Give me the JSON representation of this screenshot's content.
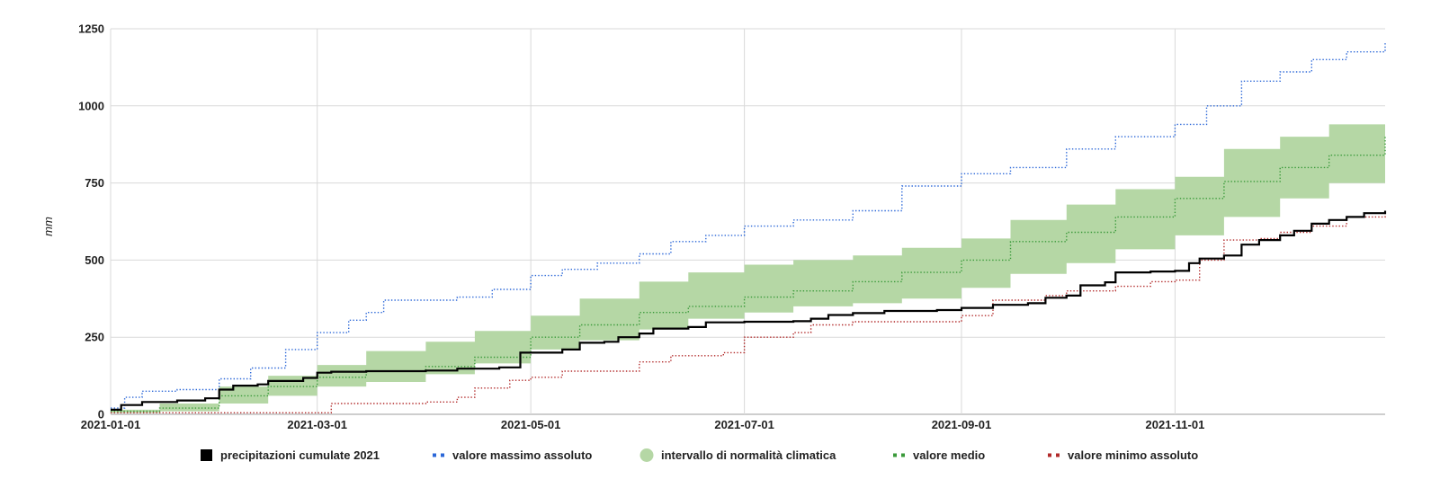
{
  "chart_data": {
    "type": "line",
    "title": "",
    "xlabel": "",
    "ylabel": "mm",
    "x_start": "2021-01-01",
    "x_end": "2021-12-31",
    "xticks": [
      "2021-01-01",
      "2021-03-01",
      "2021-05-01",
      "2021-07-01",
      "2021-09-01",
      "2021-11-01"
    ],
    "ylim": [
      0,
      1250
    ],
    "yticks": [
      0,
      250,
      500,
      750,
      1000,
      1250
    ],
    "grid": true,
    "legend_position": "bottom",
    "series": [
      {
        "name": "precipitazioni cumulate 2021",
        "kind": "line",
        "color": "#000000",
        "points": [
          [
            "2021-01-01",
            15
          ],
          [
            "2021-01-04",
            30
          ],
          [
            "2021-01-10",
            40
          ],
          [
            "2021-01-20",
            45
          ],
          [
            "2021-01-28",
            52
          ],
          [
            "2021-02-01",
            80
          ],
          [
            "2021-02-05",
            93
          ],
          [
            "2021-02-12",
            97
          ],
          [
            "2021-02-15",
            108
          ],
          [
            "2021-02-25",
            118
          ],
          [
            "2021-03-01",
            135
          ],
          [
            "2021-03-05",
            138
          ],
          [
            "2021-03-15",
            140
          ],
          [
            "2021-04-01",
            142
          ],
          [
            "2021-04-10",
            148
          ],
          [
            "2021-04-22",
            152
          ],
          [
            "2021-04-28",
            200
          ],
          [
            "2021-05-10",
            210
          ],
          [
            "2021-05-15",
            232
          ],
          [
            "2021-05-22",
            235
          ],
          [
            "2021-05-26",
            250
          ],
          [
            "2021-06-01",
            262
          ],
          [
            "2021-06-05",
            278
          ],
          [
            "2021-06-15",
            283
          ],
          [
            "2021-06-20",
            298
          ],
          [
            "2021-07-01",
            300
          ],
          [
            "2021-07-15",
            302
          ],
          [
            "2021-07-20",
            310
          ],
          [
            "2021-07-25",
            322
          ],
          [
            "2021-08-01",
            328
          ],
          [
            "2021-08-10",
            335
          ],
          [
            "2021-08-25",
            338
          ],
          [
            "2021-09-01",
            345
          ],
          [
            "2021-09-10",
            355
          ],
          [
            "2021-09-20",
            360
          ],
          [
            "2021-09-25",
            378
          ],
          [
            "2021-10-01",
            385
          ],
          [
            "2021-10-05",
            418
          ],
          [
            "2021-10-12",
            428
          ],
          [
            "2021-10-15",
            460
          ],
          [
            "2021-10-25",
            463
          ],
          [
            "2021-11-01",
            465
          ],
          [
            "2021-11-05",
            490
          ],
          [
            "2021-11-08",
            505
          ],
          [
            "2021-11-15",
            515
          ],
          [
            "2021-11-20",
            550
          ],
          [
            "2021-11-25",
            565
          ],
          [
            "2021-12-01",
            580
          ],
          [
            "2021-12-05",
            595
          ],
          [
            "2021-12-10",
            618
          ],
          [
            "2021-12-15",
            630
          ],
          [
            "2021-12-20",
            640
          ],
          [
            "2021-12-25",
            652
          ],
          [
            "2021-12-31",
            660
          ]
        ]
      },
      {
        "name": "valore massimo assoluto",
        "kind": "dotted",
        "color": "#2b67d8",
        "points": [
          [
            "2021-01-01",
            20
          ],
          [
            "2021-01-05",
            55
          ],
          [
            "2021-01-10",
            75
          ],
          [
            "2021-01-20",
            80
          ],
          [
            "2021-02-01",
            115
          ],
          [
            "2021-02-10",
            150
          ],
          [
            "2021-02-20",
            210
          ],
          [
            "2021-03-01",
            265
          ],
          [
            "2021-03-10",
            305
          ],
          [
            "2021-03-15",
            330
          ],
          [
            "2021-03-20",
            370
          ],
          [
            "2021-04-10",
            380
          ],
          [
            "2021-04-20",
            405
          ],
          [
            "2021-05-01",
            450
          ],
          [
            "2021-05-10",
            470
          ],
          [
            "2021-05-20",
            490
          ],
          [
            "2021-06-01",
            520
          ],
          [
            "2021-06-10",
            560
          ],
          [
            "2021-06-20",
            580
          ],
          [
            "2021-07-01",
            610
          ],
          [
            "2021-07-15",
            630
          ],
          [
            "2021-08-01",
            660
          ],
          [
            "2021-08-15",
            740
          ],
          [
            "2021-09-01",
            780
          ],
          [
            "2021-09-15",
            800
          ],
          [
            "2021-10-01",
            860
          ],
          [
            "2021-10-15",
            900
          ],
          [
            "2021-11-01",
            940
          ],
          [
            "2021-11-10",
            1000
          ],
          [
            "2021-11-20",
            1080
          ],
          [
            "2021-12-01",
            1110
          ],
          [
            "2021-12-10",
            1150
          ],
          [
            "2021-12-20",
            1175
          ],
          [
            "2021-12-31",
            1205
          ]
        ]
      },
      {
        "name": "intervallo di normalità climatica",
        "kind": "band",
        "color": "#b5d7a5",
        "upper": [
          [
            "2021-01-01",
            15
          ],
          [
            "2021-01-15",
            35
          ],
          [
            "2021-02-01",
            90
          ],
          [
            "2021-02-15",
            125
          ],
          [
            "2021-03-01",
            160
          ],
          [
            "2021-03-15",
            205
          ],
          [
            "2021-04-01",
            235
          ],
          [
            "2021-04-15",
            270
          ],
          [
            "2021-05-01",
            320
          ],
          [
            "2021-05-15",
            375
          ],
          [
            "2021-06-01",
            430
          ],
          [
            "2021-06-15",
            460
          ],
          [
            "2021-07-01",
            485
          ],
          [
            "2021-07-15",
            500
          ],
          [
            "2021-08-01",
            515
          ],
          [
            "2021-08-15",
            540
          ],
          [
            "2021-09-01",
            570
          ],
          [
            "2021-09-15",
            630
          ],
          [
            "2021-10-01",
            680
          ],
          [
            "2021-10-15",
            730
          ],
          [
            "2021-11-01",
            770
          ],
          [
            "2021-11-15",
            860
          ],
          [
            "2021-12-01",
            900
          ],
          [
            "2021-12-15",
            940
          ],
          [
            "2021-12-31",
            975
          ]
        ],
        "lower": [
          [
            "2021-01-01",
            5
          ],
          [
            "2021-01-15",
            10
          ],
          [
            "2021-02-01",
            35
          ],
          [
            "2021-02-15",
            60
          ],
          [
            "2021-03-01",
            90
          ],
          [
            "2021-03-15",
            105
          ],
          [
            "2021-04-01",
            130
          ],
          [
            "2021-04-15",
            165
          ],
          [
            "2021-05-01",
            210
          ],
          [
            "2021-05-15",
            240
          ],
          [
            "2021-06-01",
            275
          ],
          [
            "2021-06-15",
            310
          ],
          [
            "2021-07-01",
            330
          ],
          [
            "2021-07-15",
            350
          ],
          [
            "2021-08-01",
            360
          ],
          [
            "2021-08-15",
            375
          ],
          [
            "2021-09-01",
            410
          ],
          [
            "2021-09-15",
            455
          ],
          [
            "2021-10-01",
            490
          ],
          [
            "2021-10-15",
            535
          ],
          [
            "2021-11-01",
            580
          ],
          [
            "2021-11-15",
            640
          ],
          [
            "2021-12-01",
            700
          ],
          [
            "2021-12-15",
            750
          ],
          [
            "2021-12-31",
            770
          ]
        ]
      },
      {
        "name": "valore medio",
        "kind": "dotted",
        "color": "#3a9a3a",
        "points": [
          [
            "2021-01-01",
            10
          ],
          [
            "2021-01-15",
            20
          ],
          [
            "2021-02-01",
            60
          ],
          [
            "2021-02-15",
            90
          ],
          [
            "2021-03-01",
            120
          ],
          [
            "2021-03-15",
            140
          ],
          [
            "2021-04-01",
            155
          ],
          [
            "2021-04-15",
            185
          ],
          [
            "2021-05-01",
            250
          ],
          [
            "2021-05-15",
            290
          ],
          [
            "2021-06-01",
            330
          ],
          [
            "2021-06-15",
            350
          ],
          [
            "2021-07-01",
            380
          ],
          [
            "2021-07-15",
            400
          ],
          [
            "2021-08-01",
            430
          ],
          [
            "2021-08-15",
            460
          ],
          [
            "2021-09-01",
            500
          ],
          [
            "2021-09-15",
            560
          ],
          [
            "2021-10-01",
            590
          ],
          [
            "2021-10-15",
            640
          ],
          [
            "2021-11-01",
            700
          ],
          [
            "2021-11-15",
            755
          ],
          [
            "2021-12-01",
            800
          ],
          [
            "2021-12-15",
            840
          ],
          [
            "2021-12-31",
            905
          ]
        ]
      },
      {
        "name": "valore minimo assoluto",
        "kind": "dotted",
        "color": "#b22a2a",
        "points": [
          [
            "2021-01-01",
            5
          ],
          [
            "2021-03-01",
            5
          ],
          [
            "2021-03-05",
            35
          ],
          [
            "2021-04-01",
            40
          ],
          [
            "2021-04-10",
            55
          ],
          [
            "2021-04-15",
            85
          ],
          [
            "2021-04-25",
            110
          ],
          [
            "2021-05-01",
            120
          ],
          [
            "2021-05-10",
            140
          ],
          [
            "2021-06-01",
            170
          ],
          [
            "2021-06-10",
            190
          ],
          [
            "2021-06-25",
            200
          ],
          [
            "2021-07-01",
            250
          ],
          [
            "2021-07-15",
            265
          ],
          [
            "2021-07-20",
            290
          ],
          [
            "2021-08-01",
            300
          ],
          [
            "2021-09-01",
            320
          ],
          [
            "2021-09-10",
            370
          ],
          [
            "2021-09-25",
            385
          ],
          [
            "2021-10-01",
            400
          ],
          [
            "2021-10-15",
            415
          ],
          [
            "2021-10-25",
            430
          ],
          [
            "2021-11-01",
            435
          ],
          [
            "2021-11-08",
            500
          ],
          [
            "2021-11-15",
            565
          ],
          [
            "2021-11-25",
            570
          ],
          [
            "2021-12-01",
            590
          ],
          [
            "2021-12-10",
            610
          ],
          [
            "2021-12-20",
            640
          ],
          [
            "2021-12-31",
            655
          ]
        ]
      }
    ]
  }
}
